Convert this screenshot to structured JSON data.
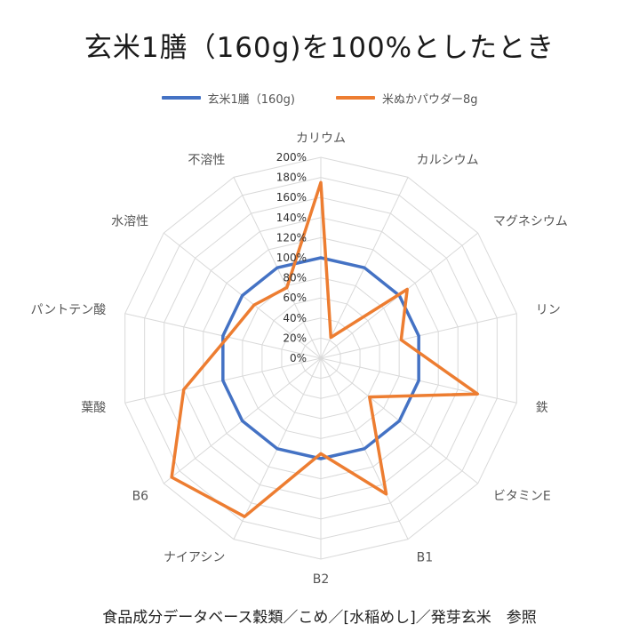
{
  "title": "玄米1膳（160g)を100%としたとき",
  "footer": "食品成分データベース穀類／こめ／[水稲めし]／発芽玄米　参照",
  "colors": {
    "series1": "#4472c4",
    "series2": "#ed7d31",
    "grid": "#d9d9d9",
    "label": "#595959"
  },
  "chart_data": {
    "type": "radar",
    "categories": [
      "カリウム",
      "カルシウム",
      "マグネシウム",
      "リン",
      "鉄",
      "ビタミンE",
      "B1",
      "B2",
      "ナイアシン",
      "B6",
      "葉酸",
      "パントテン酸",
      "水溶性",
      "不溶性"
    ],
    "tick_labels": [
      "0%",
      "20%",
      "40%",
      "60%",
      "80%",
      "100%",
      "120%",
      "140%",
      "160%",
      "180%",
      "200%"
    ],
    "rlim": [
      0,
      200
    ],
    "grid": true,
    "legend_position": "top",
    "series": [
      {
        "name": "玄米1膳（160g)",
        "color": "#4472c4",
        "values": [
          100,
          100,
          100,
          100,
          100,
          100,
          100,
          100,
          100,
          100,
          100,
          100,
          100,
          100
        ]
      },
      {
        "name": "米ぬかパウダー8g",
        "color": "#ed7d31",
        "values": [
          175,
          23,
          110,
          82,
          160,
          62,
          150,
          95,
          175,
          190,
          140,
          95,
          85,
          78
        ]
      }
    ]
  }
}
